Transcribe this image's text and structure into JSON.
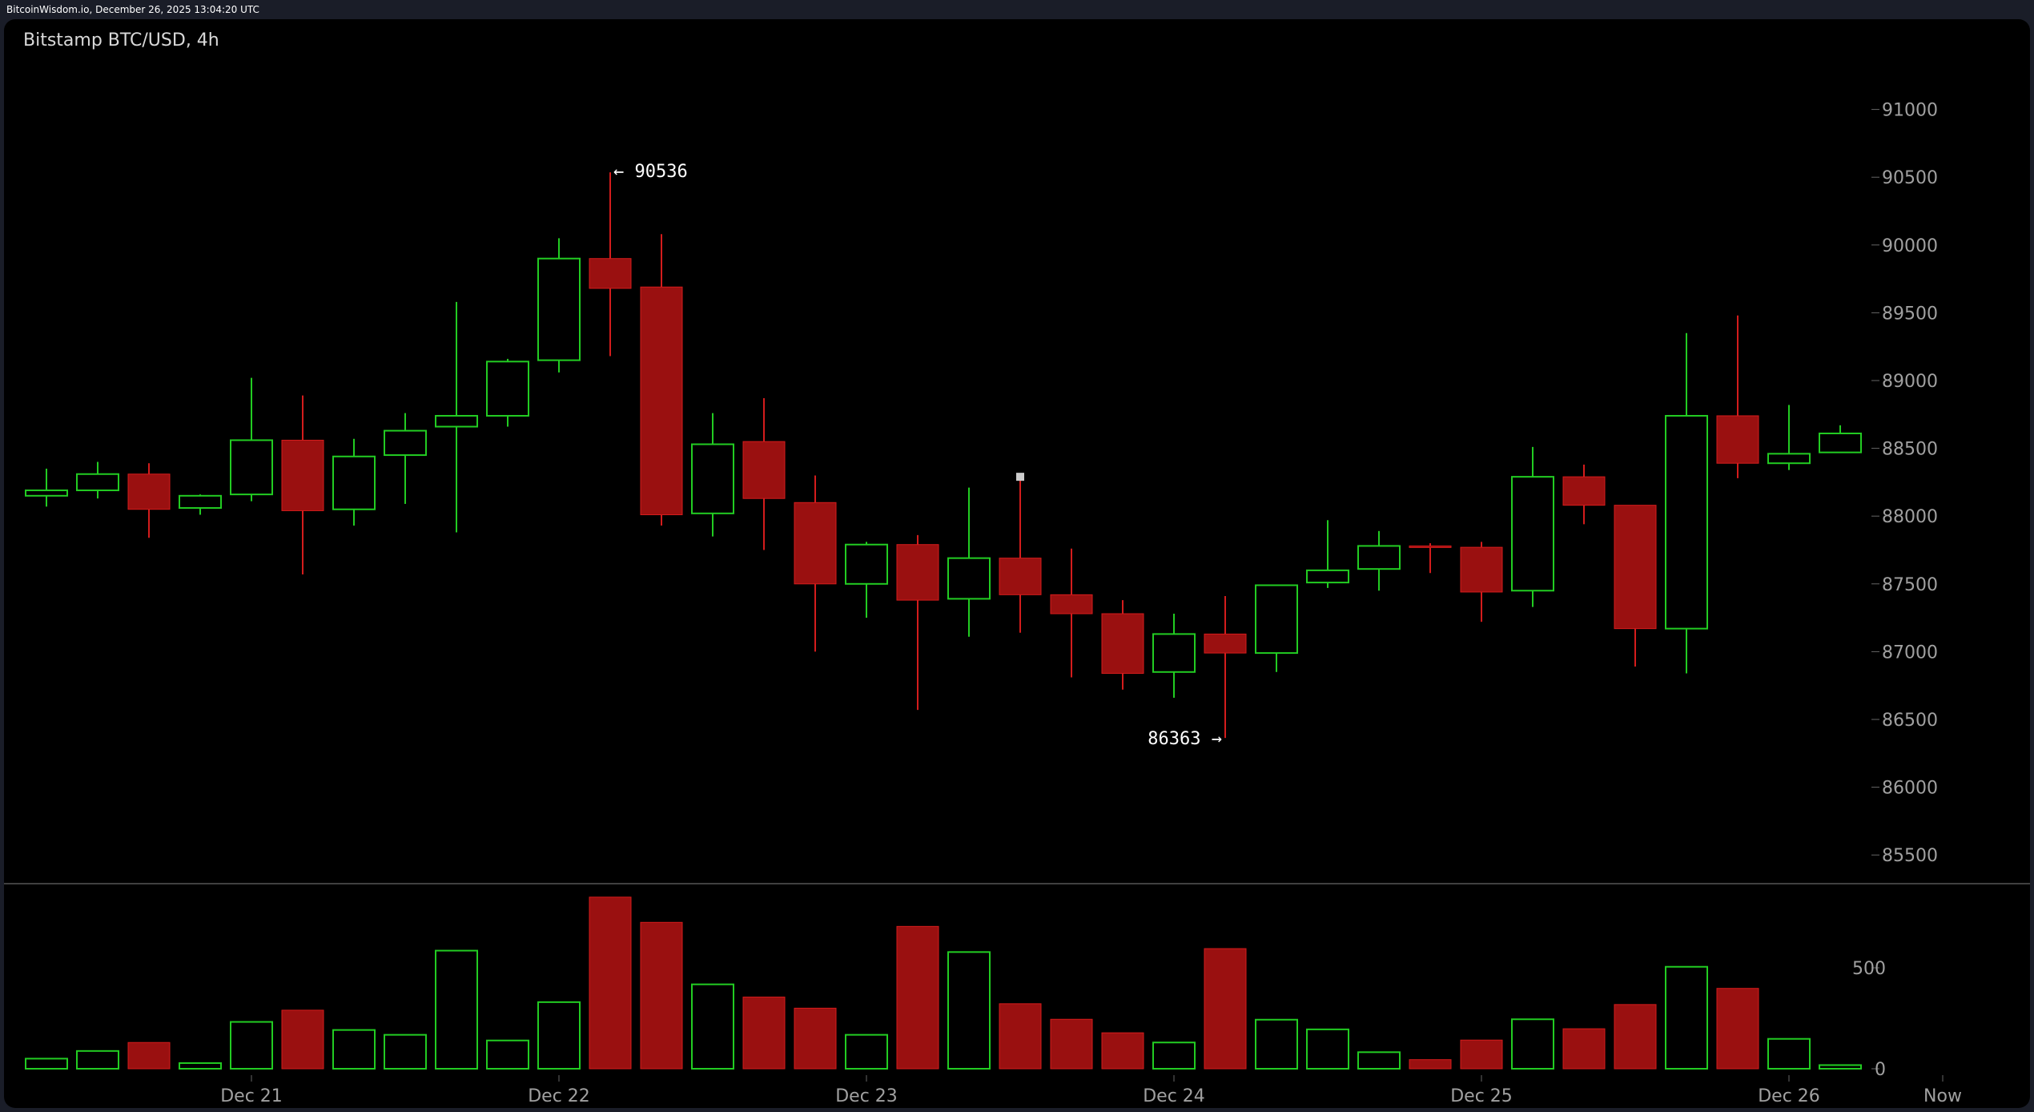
{
  "header": {
    "timestamp": "BitcoinWisdom.io, December 26, 2025 13:04:20 UTC"
  },
  "chart": {
    "title": "Bitstamp BTC/USD, 4h"
  },
  "colors": {
    "up": "#22cc22",
    "down": "#9a1010",
    "down_wick": "#d41c1c",
    "axis_text": "#a0a0a0",
    "background": "#000000"
  },
  "chart_data": {
    "type": "candlestick",
    "title": "Bitstamp BTC/USD, 4h",
    "price_ticks": [
      91000,
      90500,
      90000,
      89500,
      89000,
      88500,
      88000,
      87500,
      87000,
      86500,
      86000,
      85500
    ],
    "price_range": [
      85200,
      91600
    ],
    "volume_ticks": [
      500,
      0
    ],
    "volume_range": [
      0,
      850
    ],
    "x_labels": [
      {
        "label": "Dec 21",
        "index": 4
      },
      {
        "label": "Dec 22",
        "index": 10
      },
      {
        "label": "Dec 23",
        "index": 16
      },
      {
        "label": "Dec 24",
        "index": 22
      },
      {
        "label": "Dec 25",
        "index": 28
      },
      {
        "label": "Dec 26",
        "index": 34
      },
      {
        "label": "Now",
        "index": 37
      }
    ],
    "annotations": [
      {
        "text": "← 90536",
        "index": 11,
        "price": 90536,
        "side": "right"
      },
      {
        "text": "86363 →",
        "index": 23,
        "price": 86363,
        "side": "left"
      }
    ],
    "candles": [
      {
        "o": 88150,
        "h": 88350,
        "l": 88070,
        "c": 88190,
        "v": 50
      },
      {
        "o": 88190,
        "h": 88400,
        "l": 88130,
        "c": 88310,
        "v": 88
      },
      {
        "o": 88310,
        "h": 88390,
        "l": 87840,
        "c": 88050,
        "v": 130
      },
      {
        "o": 88060,
        "h": 88160,
        "l": 88010,
        "c": 88150,
        "v": 28
      },
      {
        "o": 88160,
        "h": 89020,
        "l": 88110,
        "c": 88560,
        "v": 232
      },
      {
        "o": 88560,
        "h": 88890,
        "l": 87570,
        "c": 88040,
        "v": 290
      },
      {
        "o": 88050,
        "h": 88570,
        "l": 87930,
        "c": 88440,
        "v": 192
      },
      {
        "o": 88450,
        "h": 88760,
        "l": 88090,
        "c": 88630,
        "v": 168
      },
      {
        "o": 88660,
        "h": 89580,
        "l": 87880,
        "c": 88740,
        "v": 585
      },
      {
        "o": 88740,
        "h": 89160,
        "l": 88660,
        "c": 89140,
        "v": 140
      },
      {
        "o": 89150,
        "h": 90050,
        "l": 89060,
        "c": 89900,
        "v": 330
      },
      {
        "o": 89900,
        "h": 90536,
        "l": 89180,
        "c": 89680,
        "v": 850
      },
      {
        "o": 89690,
        "h": 90080,
        "l": 87930,
        "c": 88010,
        "v": 725
      },
      {
        "o": 88020,
        "h": 88760,
        "l": 87850,
        "c": 88530,
        "v": 418
      },
      {
        "o": 88550,
        "h": 88870,
        "l": 87750,
        "c": 88130,
        "v": 355
      },
      {
        "o": 88100,
        "h": 88300,
        "l": 87000,
        "c": 87500,
        "v": 300
      },
      {
        "o": 87500,
        "h": 87810,
        "l": 87250,
        "c": 87790,
        "v": 168
      },
      {
        "o": 87790,
        "h": 87860,
        "l": 86570,
        "c": 87380,
        "v": 705
      },
      {
        "o": 87390,
        "h": 88210,
        "l": 87110,
        "c": 87690,
        "v": 578
      },
      {
        "o": 87690,
        "h": 88270,
        "l": 87140,
        "c": 87420,
        "v": 322
      },
      {
        "o": 87420,
        "h": 87760,
        "l": 86810,
        "c": 87280,
        "v": 245
      },
      {
        "o": 87280,
        "h": 87380,
        "l": 86720,
        "c": 86840,
        "v": 178
      },
      {
        "o": 86850,
        "h": 87280,
        "l": 86660,
        "c": 87130,
        "v": 130
      },
      {
        "o": 87130,
        "h": 87410,
        "l": 86363,
        "c": 86990,
        "v": 595
      },
      {
        "o": 86990,
        "h": 87480,
        "l": 86850,
        "c": 87490,
        "v": 243
      },
      {
        "o": 87510,
        "h": 87970,
        "l": 87470,
        "c": 87600,
        "v": 195
      },
      {
        "o": 87610,
        "h": 87890,
        "l": 87450,
        "c": 87780,
        "v": 82
      },
      {
        "o": 87780,
        "h": 87800,
        "l": 87580,
        "c": 87770,
        "v": 45
      },
      {
        "o": 87770,
        "h": 87810,
        "l": 87220,
        "c": 87440,
        "v": 142
      },
      {
        "o": 87450,
        "h": 88510,
        "l": 87330,
        "c": 88290,
        "v": 245
      },
      {
        "o": 88290,
        "h": 88380,
        "l": 87940,
        "c": 88080,
        "v": 198
      },
      {
        "o": 88080,
        "h": 88080,
        "l": 86890,
        "c": 87170,
        "v": 318
      },
      {
        "o": 87170,
        "h": 89350,
        "l": 86840,
        "c": 88740,
        "v": 505
      },
      {
        "o": 88740,
        "h": 89480,
        "l": 88280,
        "c": 88390,
        "v": 398
      },
      {
        "o": 88390,
        "h": 88820,
        "l": 88340,
        "c": 88460,
        "v": 148
      },
      {
        "o": 88470,
        "h": 88670,
        "l": 88470,
        "c": 88610,
        "v": 18
      }
    ]
  }
}
